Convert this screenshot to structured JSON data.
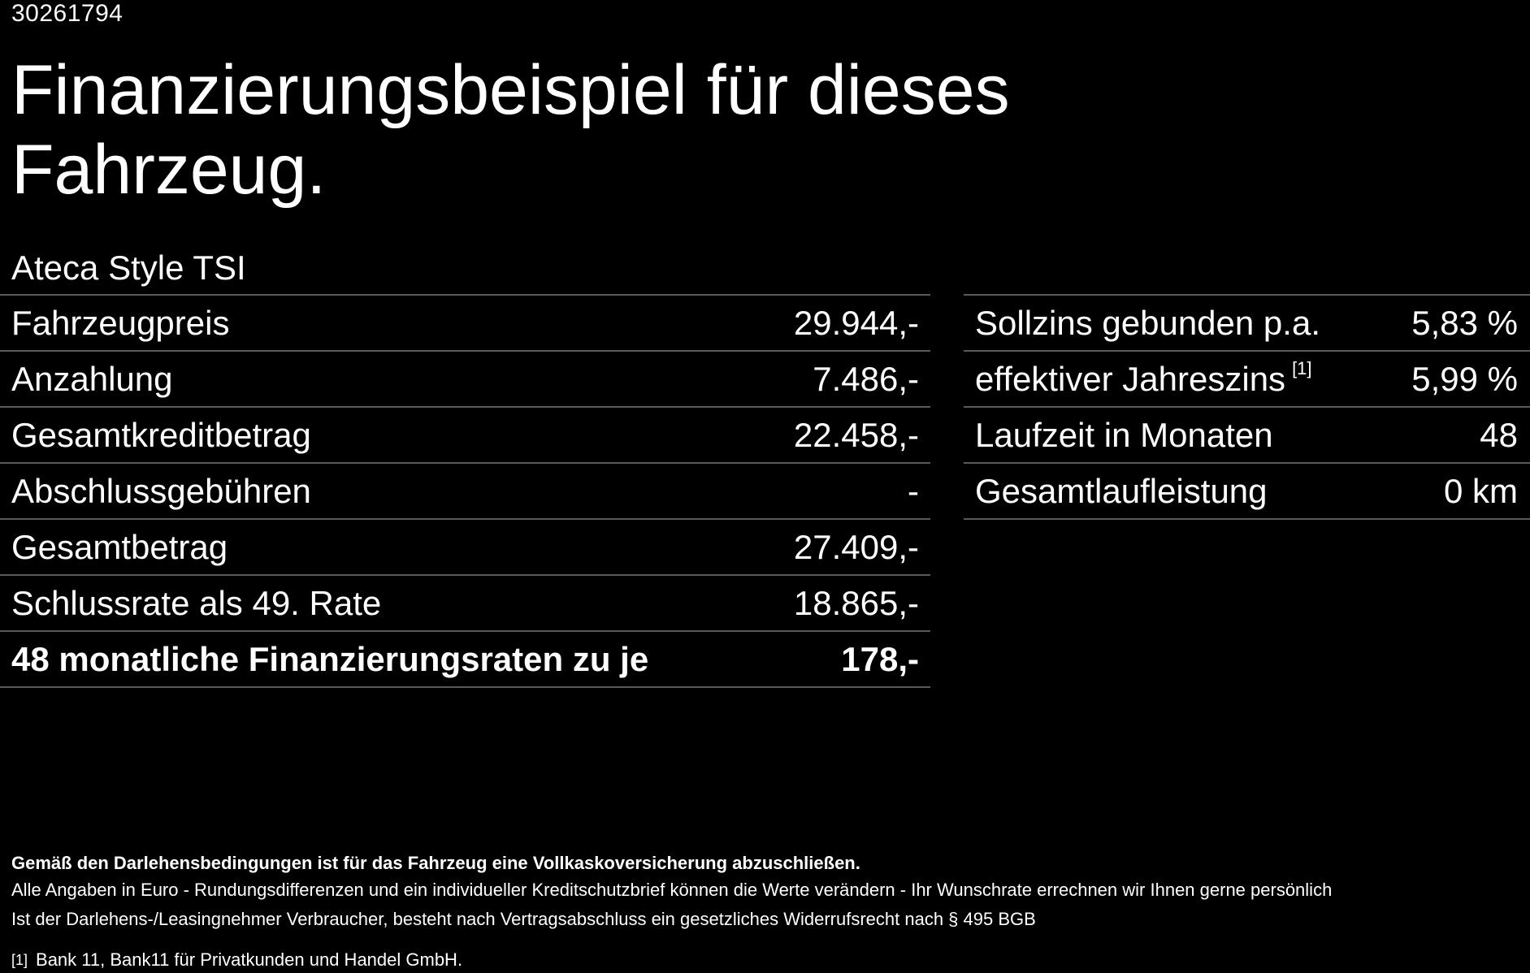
{
  "ref_id": "30261794",
  "title": "Finanzierungsbeispiel für dieses Fahrzeug.",
  "model": "Ateca Style TSI",
  "left_table": [
    {
      "label": "Fahrzeugpreis",
      "value": "29.944,-"
    },
    {
      "label": "Anzahlung",
      "value": "7.486,-"
    },
    {
      "label": "Gesamtkreditbetrag",
      "value": "22.458,-"
    },
    {
      "label": "Abschlussgebühren",
      "value": "-"
    },
    {
      "label": "Gesamtbetrag",
      "value": "27.409,-"
    },
    {
      "label": "Schlussrate als 49. Rate",
      "value": "18.865,-"
    },
    {
      "label": "48 monatliche Finanzierungsraten zu je",
      "value": "178,-"
    }
  ],
  "right_table": [
    {
      "label": "Sollzins gebunden p.a.",
      "value": "5,83 %"
    },
    {
      "label": "effektiver Jahreszins",
      "footnote": "[1]",
      "value": "5,99 %"
    },
    {
      "label": "Laufzeit in Monaten",
      "value": "48"
    },
    {
      "label": "Gesamtlaufleistung",
      "value": "0 km"
    }
  ],
  "notes": {
    "bold": "Gemäß den Darlehensbedingungen ist für das Fahrzeug eine Vollkaskoversicherung abzuschließen.",
    "line1": "Alle Angaben in Euro - Rundungsdifferenzen und ein individueller Kreditschutzbrief können die Werte verändern - Ihr Wunschrate errechnen wir Ihnen gerne persönlich",
    "line2": "Ist der Darlehens-/Leasingnehmer Verbraucher, besteht nach Vertragsabschluss ein gesetzliches Widerrufsrecht nach § 495 BGB"
  },
  "footnote": {
    "marker": "[1]",
    "text": "Bank 11, Bank11 für Privatkunden und Handel GmbH."
  }
}
